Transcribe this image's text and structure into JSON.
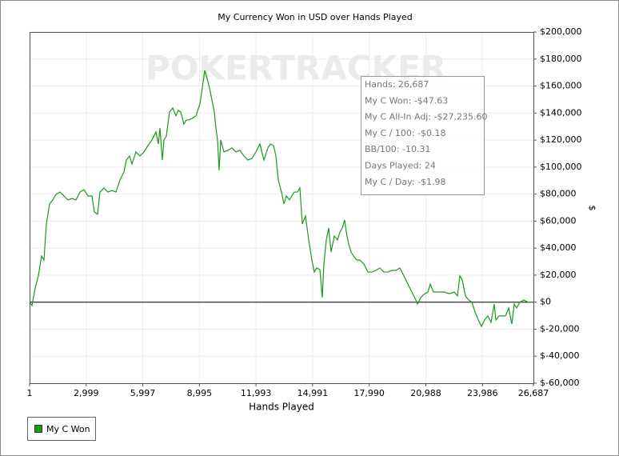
{
  "chart_data": {
    "type": "line",
    "title": "My Currency Won in USD over Hands Played",
    "x_label": "Hands Played",
    "y_label": "$",
    "watermark": "POKERTRACKER",
    "annotations": [
      "Hands: 26,687",
      "My C Won: -$47.63",
      "My C All-In Adj: -$27,235.60",
      "My C / 100: -$0.18",
      "BB/100: -10.31",
      "Days Played: 24",
      "My C / Day: -$1.98"
    ],
    "grid": true,
    "zero_line": true,
    "legend": "bottom-left",
    "xlim": [
      1,
      26687
    ],
    "xticks": [
      1,
      {
        "value": 2999,
        "label": "2,999"
      },
      {
        "value": 5997,
        "label": "5,997"
      },
      {
        "value": 8995,
        "label": "8,995"
      },
      {
        "value": 11993,
        "label": "11,993"
      },
      {
        "value": 14991,
        "label": "14,991"
      },
      {
        "value": 17990,
        "label": "17,990"
      },
      {
        "value": 20988,
        "label": "20,988"
      },
      {
        "value": 23986,
        "label": "23,986"
      },
      {
        "value": 26687,
        "label": "26,687"
      }
    ],
    "ylim": [
      -60000,
      200000
    ],
    "yticks": [
      {
        "value": -60000,
        "label": "$-60,000"
      },
      {
        "value": -40000,
        "label": "$-40,000"
      },
      {
        "value": -20000,
        "label": "$-20,000"
      },
      {
        "value": 0,
        "label": "$0"
      },
      {
        "value": 20000,
        "label": "$20,000"
      },
      {
        "value": 40000,
        "label": "$40,000"
      },
      {
        "value": 60000,
        "label": "$60,000"
      },
      {
        "value": 80000,
        "label": "$80,000"
      },
      {
        "value": 100000,
        "label": "$100,000"
      },
      {
        "value": 120000,
        "label": "$120,000"
      },
      {
        "value": 140000,
        "label": "$140,000"
      },
      {
        "value": 160000,
        "label": "$160,000"
      },
      {
        "value": 180000,
        "label": "$180,000"
      },
      {
        "value": 200000,
        "label": "$200,000"
      }
    ],
    "x": [
      1,
      127,
      296,
      466,
      635,
      762,
      889,
      1059,
      1228,
      1398,
      1610,
      1822,
      2033,
      2245,
      2457,
      2669,
      2880,
      3092,
      3304,
      3431,
      3601,
      3728,
      3939,
      4151,
      4363,
      4575,
      4787,
      4998,
      5126,
      5295,
      5422,
      5634,
      5846,
      6058,
      6269,
      6481,
      6693,
      6820,
      6905,
      7032,
      7117,
      7244,
      7413,
      7583,
      7752,
      7879,
      8006,
      8176,
      8303,
      8430,
      8599,
      8811,
      9023,
      9150,
      9277,
      9362,
      9531,
      9658,
      9785,
      9870,
      9955,
      10040,
      10124,
      10294,
      10505,
      10717,
      10929,
      11141,
      11353,
      11564,
      11776,
      11988,
      12200,
      12411,
      12623,
      12750,
      12920,
      13047,
      13174,
      13343,
      13470,
      13598,
      13767,
      13894,
      14021,
      14191,
      14318,
      14445,
      14614,
      14784,
      14953,
      15080,
      15207,
      15377,
      15504,
      15589,
      15716,
      15843,
      15970,
      16140,
      16309,
      16436,
      16563,
      16690,
      16775,
      16902,
      17029,
      17156,
      17326,
      17495,
      17707,
      17919,
      18131,
      18342,
      18554,
      18766,
      18978,
      19190,
      19401,
      19613,
      19825,
      20037,
      20248,
      20460,
      20545,
      20714,
      20884,
      21096,
      21223,
      21392,
      21646,
      21943,
      22239,
      22493,
      22663,
      22790,
      22917,
      23087,
      23256,
      23426,
      23595,
      23765,
      23934,
      24104,
      24273,
      24443,
      24612,
      24697,
      24866,
      25036,
      25205,
      25375,
      25544,
      25671,
      25798,
      25968,
      26180,
      26391,
      26687
    ],
    "series": [
      {
        "name": "My C Won",
        "color": "#1a9a1a",
        "values": [
          0,
          -2500,
          10500,
          19400,
          34200,
          31200,
          57900,
          72700,
          75700,
          79800,
          81500,
          78600,
          75700,
          76800,
          75700,
          81500,
          83300,
          78600,
          78600,
          66800,
          65000,
          81500,
          84500,
          81500,
          82700,
          81500,
          90400,
          96300,
          105200,
          108200,
          102300,
          111200,
          108200,
          111200,
          115900,
          120100,
          126000,
          117100,
          128900,
          105200,
          120100,
          123000,
          140800,
          143800,
          137900,
          142000,
          140800,
          131900,
          134900,
          134900,
          136000,
          137900,
          146700,
          158600,
          171600,
          167500,
          158600,
          149700,
          140800,
          128900,
          120100,
          97600,
          120100,
          111200,
          112400,
          114200,
          111200,
          112400,
          108200,
          105200,
          106400,
          111200,
          117100,
          105200,
          114200,
          117100,
          115900,
          108200,
          90400,
          81500,
          72700,
          78600,
          75700,
          78600,
          81500,
          81500,
          84500,
          57900,
          63800,
          46000,
          31200,
          22300,
          25300,
          24100,
          3400,
          28200,
          46000,
          54900,
          37100,
          49000,
          46000,
          51900,
          54900,
          60800,
          51900,
          43000,
          37100,
          34200,
          31200,
          31200,
          28200,
          22300,
          22300,
          23500,
          25300,
          22300,
          22300,
          23500,
          23500,
          25300,
          19400,
          13400,
          7500,
          1600,
          -1400,
          3400,
          5700,
          7500,
          13400,
          7500,
          7500,
          7500,
          6300,
          7500,
          4600,
          19400,
          16400,
          4600,
          1600,
          0,
          -7300,
          -13100,
          -17900,
          -13100,
          -10200,
          -14900,
          -1400,
          -13100,
          -10200,
          -10200,
          -10200,
          -4300,
          -16100,
          -1400,
          -4300,
          0,
          1600,
          0,
          -48
        ]
      }
    ]
  }
}
